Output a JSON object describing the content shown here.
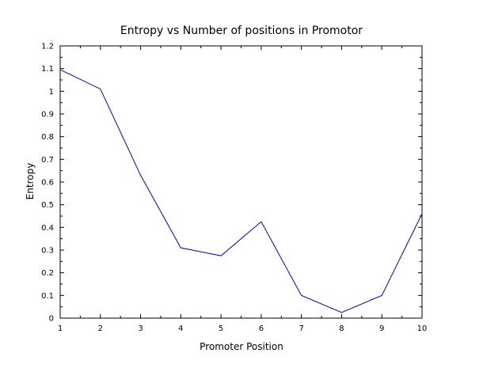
{
  "chart_data": {
    "type": "line",
    "title": "Entropy vs Number of positions in Promotor",
    "xlabel": "Promoter Position",
    "ylabel": "Entropy",
    "xlim": [
      1,
      10
    ],
    "ylim": [
      0,
      1.2
    ],
    "xticks": [
      "1",
      "2",
      "3",
      "4",
      "5",
      "6",
      "7",
      "8",
      "9",
      "10"
    ],
    "yticks": [
      "0",
      "0.1",
      "0.2",
      "0.3",
      "0.4",
      "0.5",
      "0.6",
      "0.7",
      "0.8",
      "0.9",
      "1",
      "1.1",
      "1.2"
    ],
    "grid": false,
    "series": [
      {
        "color": "#0000cc",
        "x": [
          1,
          2,
          3,
          4,
          5,
          6,
          7,
          8,
          9,
          10
        ],
        "y": [
          1.095,
          1.01,
          0.63,
          0.31,
          0.275,
          0.425,
          0.1,
          0.025,
          0.1,
          0.46
        ]
      }
    ]
  }
}
